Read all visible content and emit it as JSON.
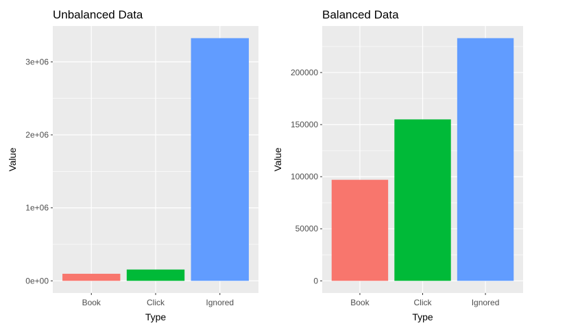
{
  "chart_data": [
    {
      "type": "bar",
      "title": "Unbalanced Data",
      "xlabel": "Type",
      "ylabel": "Value",
      "categories": [
        "Book",
        "Click",
        "Ignored"
      ],
      "values": [
        97000,
        155000,
        3325000
      ],
      "colors": [
        "#F8766D",
        "#00BA38",
        "#619CFF"
      ],
      "ylim": [
        -166250,
        3491250
      ],
      "yticks": [
        0,
        1000000,
        2000000,
        3000000
      ],
      "ytick_labels": [
        "0e+00",
        "1e+06",
        "2e+06",
        "3e+06"
      ],
      "grid": true,
      "legend": "none"
    },
    {
      "type": "bar",
      "title": "Balanced Data",
      "xlabel": "Type",
      "ylabel": "Value",
      "categories": [
        "Book",
        "Click",
        "Ignored"
      ],
      "values": [
        97000,
        155000,
        233000
      ],
      "colors": [
        "#F8766D",
        "#00BA38",
        "#619CFF"
      ],
      "ylim": [
        -11650,
        244650
      ],
      "yticks": [
        0,
        50000,
        100000,
        150000,
        200000
      ],
      "ytick_labels": [
        "0",
        "50000",
        "100000",
        "150000",
        "200000"
      ],
      "grid": true,
      "legend": "none"
    }
  ]
}
